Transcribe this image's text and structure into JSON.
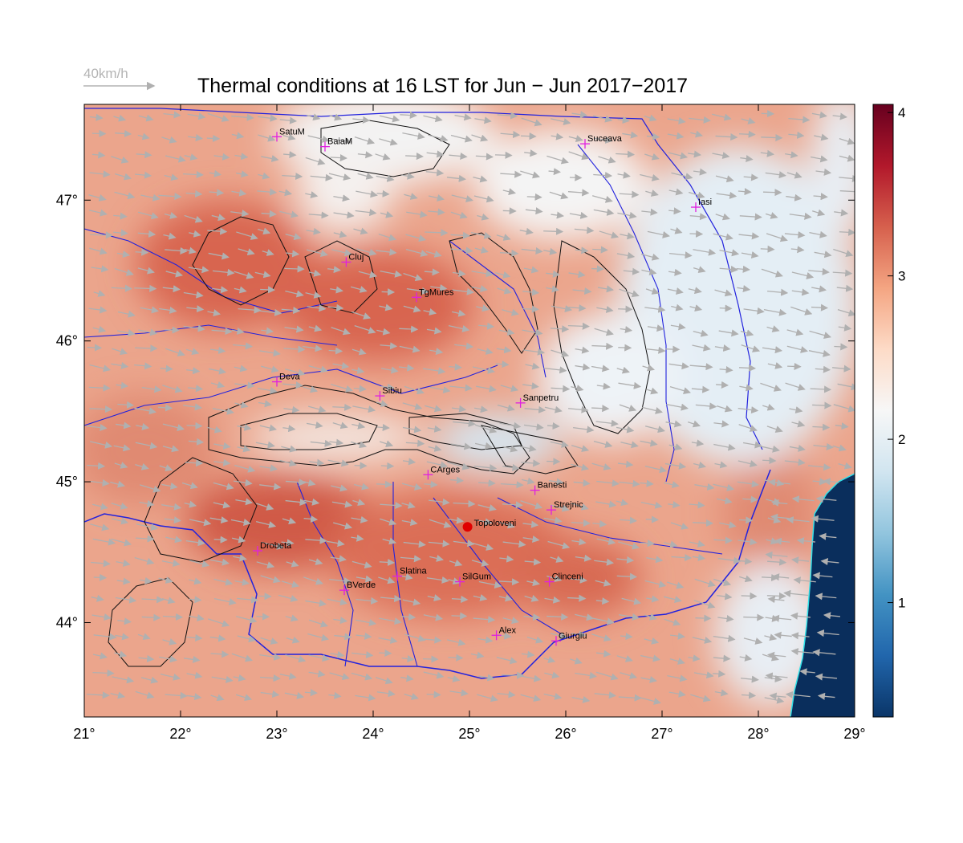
{
  "title": "Thermal conditions at 16 LST for Jun − Jun  2017−2017",
  "wind_reference": {
    "label": "40km/h",
    "color": "#b4b4b4"
  },
  "map": {
    "lon_range": [
      21,
      29
    ],
    "lat_range": [
      43.33,
      47.68
    ],
    "lon_ticks": [
      "21°",
      "22°",
      "23°",
      "24°",
      "25°",
      "26°",
      "27°",
      "28°",
      "29°"
    ],
    "lat_ticks": [
      "44°",
      "45°",
      "46°",
      "47°"
    ],
    "marker_color": "#e020e0",
    "highlight_color": "#e00000",
    "cities": [
      {
        "name": "SatuM",
        "lon": 23.0,
        "lat": 47.45
      },
      {
        "name": "BaiaM",
        "lon": 23.5,
        "lat": 47.38
      },
      {
        "name": "Suceava",
        "lon": 26.2,
        "lat": 47.4
      },
      {
        "name": "Iasi",
        "lon": 27.35,
        "lat": 46.95
      },
      {
        "name": "Cluj",
        "lon": 23.72,
        "lat": 46.56
      },
      {
        "name": "TgMures",
        "lon": 24.45,
        "lat": 46.31
      },
      {
        "name": "Deva",
        "lon": 23.0,
        "lat": 45.71
      },
      {
        "name": "Sibiu",
        "lon": 24.07,
        "lat": 45.61
      },
      {
        "name": "Sanpetru",
        "lon": 25.53,
        "lat": 45.56
      },
      {
        "name": "CArges",
        "lon": 24.57,
        "lat": 45.05
      },
      {
        "name": "Banesti",
        "lon": 25.68,
        "lat": 44.94
      },
      {
        "name": "Strejnic",
        "lon": 25.85,
        "lat": 44.8
      },
      {
        "name": "Drobeta",
        "lon": 22.8,
        "lat": 44.51
      },
      {
        "name": "Slatina",
        "lon": 24.25,
        "lat": 44.33
      },
      {
        "name": "SilGum",
        "lon": 24.9,
        "lat": 44.29
      },
      {
        "name": "Clinceni",
        "lon": 25.83,
        "lat": 44.29
      },
      {
        "name": "BVerde",
        "lon": 23.7,
        "lat": 44.23
      },
      {
        "name": "Alex",
        "lon": 25.28,
        "lat": 43.91
      },
      {
        "name": "Giurgiu",
        "lon": 25.9,
        "lat": 43.87
      }
    ],
    "highlight_site": {
      "name": "Topoloveni",
      "lon": 24.98,
      "lat": 44.68
    }
  },
  "colorbar": {
    "ticks": [
      "1",
      "2",
      "3",
      "4"
    ],
    "range": [
      0.3,
      4.05
    ],
    "colors": [
      "#0a3568",
      "#2166ac",
      "#4393c3",
      "#92c5de",
      "#d1e5f0",
      "#f7f7f7",
      "#fddbc7",
      "#f4a582",
      "#d6604d",
      "#b2182b",
      "#67001f"
    ]
  }
}
